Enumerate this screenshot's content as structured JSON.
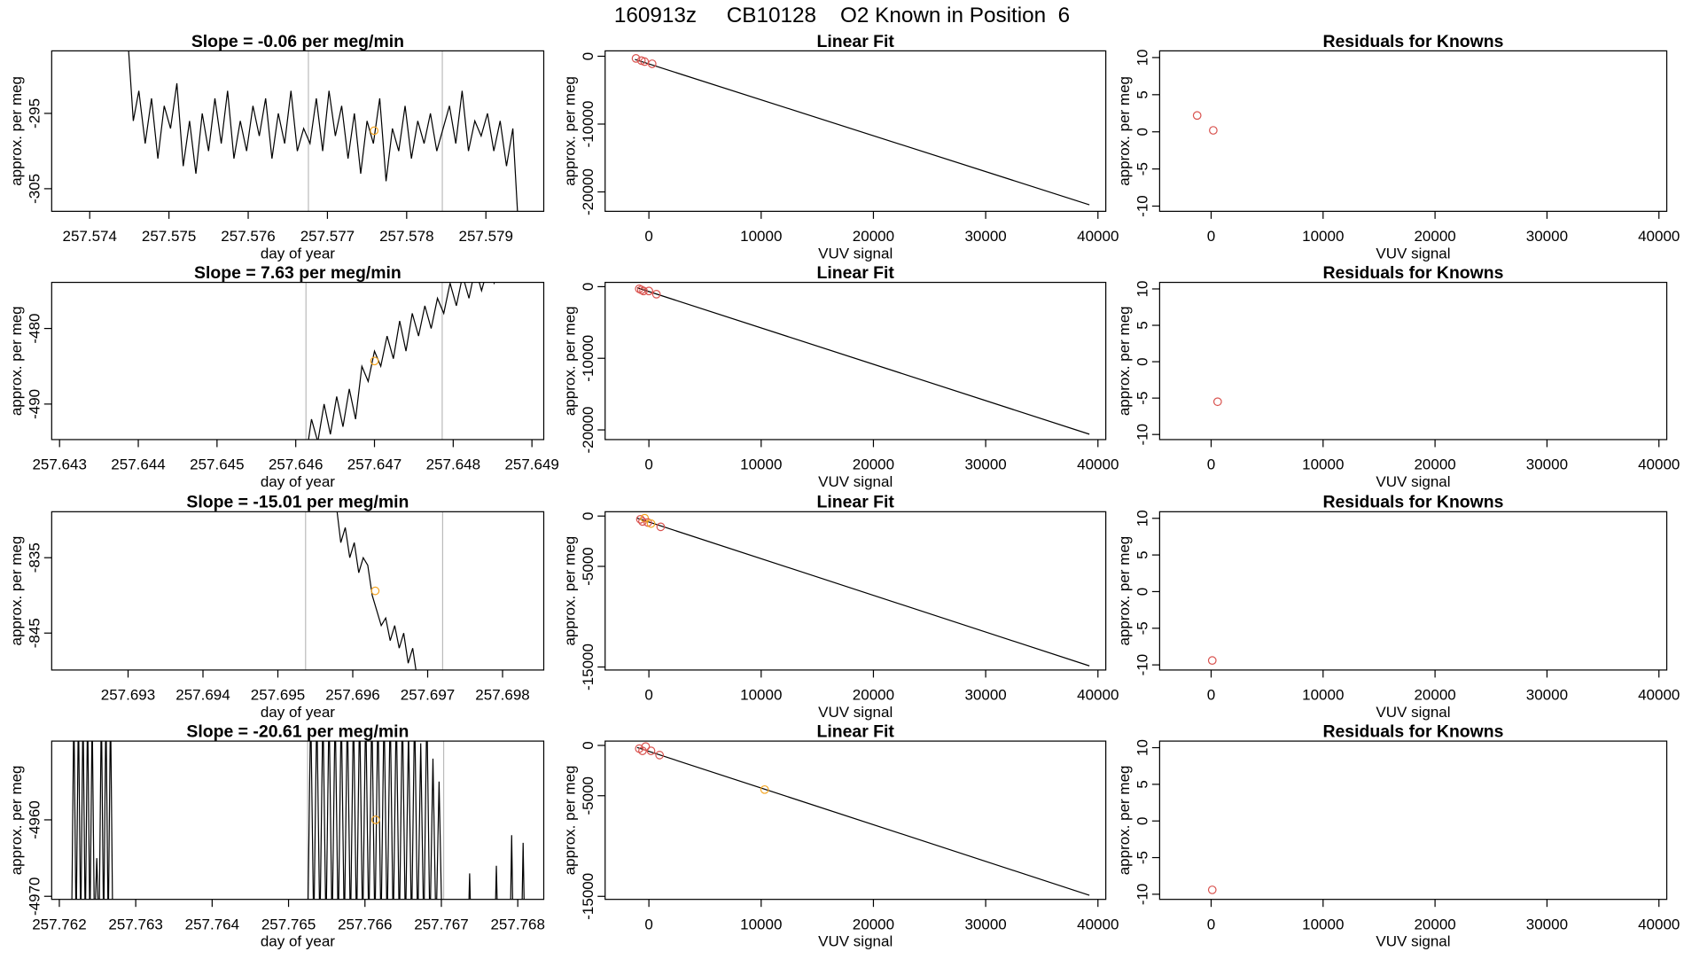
{
  "title": "160913z     CB10128    O2 Known in Position  6",
  "chart_data": [
    {
      "type": "line",
      "title": "Slope =  -0.06  per meg/min",
      "xlabel": "day of year",
      "ylabel": "approx. per meg",
      "x": [
        257.57448,
        257.57455,
        257.57462,
        257.5747,
        257.57478,
        257.57486,
        257.57494,
        257.57502,
        257.5751,
        257.57518,
        257.57526,
        257.57534,
        257.57542,
        257.5755,
        257.57558,
        257.57566,
        257.57574,
        257.57582,
        257.5759,
        257.57598,
        257.57606,
        257.57614,
        257.57622,
        257.5763,
        257.57638,
        257.57646,
        257.57654,
        257.57662,
        257.5767,
        257.57678,
        257.57686,
        257.57694,
        257.57702,
        257.5771,
        257.57718,
        257.57726,
        257.57734,
        257.57742,
        257.5775,
        257.57758,
        257.57766,
        257.57774,
        257.57782,
        257.5779,
        257.57798,
        257.57806,
        257.57814,
        257.57822,
        257.5783,
        257.57838,
        257.57846,
        257.57854,
        257.57862,
        257.5787,
        257.57878,
        257.57886,
        257.57894,
        257.57902,
        257.5791,
        257.57918,
        257.57926,
        257.57934,
        257.57942
      ],
      "values": [
        -285,
        -296,
        -292,
        -299,
        -293,
        -301,
        -294,
        -297,
        -291,
        -302,
        -296,
        -303,
        -295,
        -300,
        -293,
        -299,
        -292,
        -301,
        -296,
        -300,
        -294,
        -298,
        -293,
        -301,
        -295,
        -299,
        -292,
        -300,
        -297,
        -299,
        -293,
        -300,
        -292,
        -298,
        -294,
        -301,
        -295,
        -303,
        -296,
        -299,
        -293,
        -304,
        -297,
        -300,
        -294,
        -301,
        -296,
        -299,
        -295,
        -300,
        -297,
        -294,
        -299,
        -292,
        -300,
        -296,
        -298,
        -295,
        -300,
        -296,
        -302,
        -297,
        -312
      ],
      "color": "#000000",
      "xlim": [
        257.57352,
        257.57973
      ],
      "ylim": [
        -308.0,
        -286.7
      ],
      "xticks": [
        257.574,
        257.575,
        257.576,
        257.577,
        257.578,
        257.579
      ],
      "yticks": [
        -295,
        -305
      ],
      "vlines": [
        257.57676,
        257.57845
      ],
      "vline_color": "#bbbbbb",
      "highlight_x": 257.57759,
      "highlight_y": -297.3,
      "highlight_color": "#f5a623"
    },
    {
      "type": "scatter",
      "title": "Linear Fit",
      "xlabel": "VUV signal",
      "ylabel": "approx. per meg",
      "x": [
        -1150,
        -670,
        -380,
        290
      ],
      "values": [
        -320,
        -640,
        -790,
        -1110
      ],
      "colors": [
        "#d9534f",
        "#d9534f",
        "#d9534f",
        "#d9534f"
      ],
      "fit_x": [
        -1240,
        39240
      ],
      "fit_y": [
        -476,
        -21900
      ],
      "fit_color": "#000000",
      "xlim": [
        -3900,
        40700
      ],
      "ylim": [
        -22860,
        794
      ],
      "xticks": [
        0,
        10000,
        20000,
        30000,
        40000
      ],
      "yticks": [
        0,
        -10000,
        -20000
      ]
    },
    {
      "type": "scatter",
      "title": "Residuals for Knowns",
      "xlabel": "VUV signal",
      "ylabel": "approx. per meg",
      "x": [
        -1250,
        190
      ],
      "values": [
        2.2,
        0.2
      ],
      "colors": [
        "#d9534f",
        "#d9534f"
      ],
      "xlim": [
        -4600,
        40700
      ],
      "ylim": [
        -10.7,
        10.9
      ],
      "xticks": [
        0,
        10000,
        20000,
        30000,
        40000
      ],
      "yticks": [
        -10,
        -5,
        0,
        5,
        10
      ]
    },
    {
      "type": "line",
      "title": "Slope =  7.63  per meg/min",
      "xlabel": "day of year",
      "ylabel": "approx. per meg",
      "x": [
        257.64613,
        257.6462,
        257.64628,
        257.64636,
        257.64644,
        257.64652,
        257.6466,
        257.64668,
        257.64676,
        257.64684,
        257.64692,
        257.647,
        257.64708,
        257.64716,
        257.64724,
        257.64732,
        257.6474,
        257.64748,
        257.64756,
        257.64764,
        257.64772,
        257.6478,
        257.64788,
        257.64796,
        257.64804,
        257.64812,
        257.6482,
        257.64828,
        257.64836,
        257.64844,
        257.64852,
        257.6486,
        257.64868
      ],
      "values": [
        -497,
        -492,
        -495,
        -490,
        -494,
        -489,
        -493,
        -488,
        -492,
        -485,
        -487,
        -483,
        -485,
        -481,
        -484,
        -479,
        -483,
        -478,
        -481,
        -477,
        -480,
        -476,
        -478,
        -474,
        -477,
        -473,
        -476,
        -472,
        -475,
        -472,
        -474,
        -471,
        -473
      ],
      "color": "#000000",
      "xlim": [
        257.6429,
        257.64915
      ],
      "ylim": [
        -494.7,
        -473.9
      ],
      "xticks": [
        257.643,
        257.644,
        257.645,
        257.646,
        257.647,
        257.648,
        257.649
      ],
      "yticks": [
        -480,
        -490
      ],
      "vlines": [
        257.64613,
        257.64786
      ],
      "vline_color": "#bbbbbb",
      "highlight_x": 257.647,
      "highlight_y": -484.3,
      "highlight_color": "#f5a623"
    },
    {
      "type": "scatter",
      "title": "Linear Fit",
      "xlabel": "VUV signal",
      "ylabel": "approx. per meg",
      "x": [
        -860,
        -670,
        -480,
        0,
        670
      ],
      "values": [
        -300,
        -450,
        -600,
        -600,
        -1050
      ],
      "colors": [
        "#d9534f",
        "#d9534f",
        "#d9534f",
        "#d9534f",
        "#d9534f"
      ],
      "fit_x": [
        -1050,
        39240
      ],
      "fit_y": [
        -150,
        -20600
      ],
      "fit_color": "#000000",
      "xlim": [
        -3900,
        40700
      ],
      "ylim": [
        -21350,
        600
      ],
      "xticks": [
        0,
        10000,
        20000,
        30000,
        40000
      ],
      "yticks": [
        0,
        -10000,
        -20000
      ]
    },
    {
      "type": "scatter",
      "title": "Residuals for Knowns",
      "xlabel": "VUV signal",
      "ylabel": "approx. per meg",
      "x": [
        580
      ],
      "values": [
        -5.5
      ],
      "colors": [
        "#d9534f"
      ],
      "xlim": [
        -4600,
        40700
      ],
      "ylim": [
        -10.7,
        10.9
      ],
      "xticks": [
        0,
        10000,
        20000,
        30000,
        40000
      ],
      "yticks": [
        -10,
        -5,
        0,
        5,
        10
      ]
    },
    {
      "type": "line",
      "title": "Slope =  -15.01  per meg/min",
      "xlabel": "day of year",
      "ylabel": "approx. per meg",
      "x": [
        257.69578,
        257.69584,
        257.6959,
        257.69596,
        257.69602,
        257.69608,
        257.69614,
        257.6962,
        257.69626,
        257.69632,
        257.69638,
        257.69644,
        257.6965,
        257.69656,
        257.69662,
        257.69668,
        257.69674,
        257.6968,
        257.69686
      ],
      "values": [
        -828,
        -833,
        -831,
        -835,
        -833,
        -837,
        -835,
        -836,
        -840,
        -842,
        -844,
        -843,
        -846,
        -844,
        -847,
        -845,
        -849,
        -847,
        -851
      ],
      "color": "#000000",
      "xlim": [
        257.69198,
        257.69855
      ],
      "ylim": [
        -849.9,
        -828.9
      ],
      "xticks": [
        257.693,
        257.694,
        257.695,
        257.696,
        257.697,
        257.698
      ],
      "yticks": [
        -835,
        -845
      ],
      "vlines": [
        257.69537,
        257.6972
      ],
      "vline_color": "#bbbbbb",
      "highlight_x": 257.6963,
      "highlight_y": -839.4,
      "highlight_color": "#f5a623"
    },
    {
      "type": "scatter",
      "title": "Linear Fit",
      "xlabel": "VUV signal",
      "ylabel": "approx. per meg",
      "x": [
        -760,
        -570,
        -380,
        -100,
        190,
        1050
      ],
      "values": [
        -320,
        -540,
        -210,
        -640,
        -750,
        -1070
      ],
      "colors": [
        "#d9534f",
        "#d9534f",
        "#f5a623",
        "#d9534f",
        "#f5a623",
        "#d9534f"
      ],
      "fit_x": [
        -1050,
        39240
      ],
      "fit_y": [
        -210,
        -14890
      ],
      "fit_color": "#000000",
      "xlim": [
        -3900,
        40700
      ],
      "ylim": [
        -15300,
        430
      ],
      "xticks": [
        0,
        10000,
        20000,
        30000,
        40000
      ],
      "yticks": [
        0,
        -5000,
        -15000
      ]
    },
    {
      "type": "scatter",
      "title": "Residuals for Knowns",
      "xlabel": "VUV signal",
      "ylabel": "approx. per meg",
      "x": [
        100
      ],
      "values": [
        -9.4
      ],
      "colors": [
        "#d9534f"
      ],
      "xlim": [
        -4600,
        40700
      ],
      "ylim": [
        -10.7,
        10.9
      ],
      "xticks": [
        0,
        10000,
        20000,
        30000,
        40000
      ],
      "yticks": [
        -10,
        -5,
        0,
        5,
        10
      ]
    },
    {
      "type": "line",
      "title": "Slope =  -20.61  per meg/min",
      "xlabel": "day of year",
      "ylabel": "approx. per meg",
      "x": [
        257.76216,
        257.76219,
        257.76222,
        257.76225,
        257.76228,
        257.76231,
        257.76234,
        257.76237,
        257.7624,
        257.76243,
        257.76246,
        257.76249,
        257.76252,
        257.76255,
        257.76258,
        257.76261,
        257.76264,
        257.76267,
        257.7627,
        257.764,
        257.76525,
        257.76529,
        257.76533,
        257.76537,
        257.76541,
        257.76545,
        257.76549,
        257.76553,
        257.76557,
        257.76561,
        257.76565,
        257.76569,
        257.76573,
        257.76577,
        257.76581,
        257.76585,
        257.76589,
        257.76593,
        257.76597,
        257.76601,
        257.76605,
        257.76609,
        257.76613,
        257.76617,
        257.76621,
        257.76625,
        257.76629,
        257.76633,
        257.76637,
        257.76641,
        257.76645,
        257.76649,
        257.76653,
        257.76657,
        257.76661,
        257.76665,
        257.76669,
        257.76673,
        257.76677,
        257.76681,
        257.76685,
        257.76689,
        257.76693,
        257.76697,
        257.76701,
        257.7672,
        257.76735,
        257.76737,
        257.76739,
        257.7676,
        257.7677,
        257.76772,
        257.76774,
        257.7678,
        257.7679,
        257.76792,
        257.76794,
        257.768,
        257.76805,
        257.76807,
        257.76809
      ],
      "values": [
        -4975,
        -4945,
        -4975,
        -4945,
        -4975,
        -4945,
        -4975,
        -4945,
        -4975,
        -4946,
        -4975,
        -4965,
        -4975,
        -4945,
        -4975,
        -4945,
        -4975,
        -4945,
        -4975,
        null,
        -4975,
        -4945,
        -4975,
        -4945,
        -4975,
        -4945,
        -4975,
        -4945,
        -4975,
        -4945,
        -4975,
        -4945,
        -4975,
        -4945,
        -4975,
        -4945,
        -4975,
        -4945,
        -4975,
        -4945,
        -4975,
        -4945,
        -4975,
        -4945,
        -4975,
        -4945,
        -4975,
        -4945,
        -4975,
        -4945,
        -4975,
        -4945,
        -4975,
        -4948,
        -4975,
        -4945,
        -4975,
        -4950,
        -4975,
        -4945,
        -4975,
        -4952,
        -4975,
        -4955,
        -4975,
        null,
        -4975,
        -4967,
        -4975,
        null,
        -4975,
        -4966,
        -4975,
        null,
        -4975,
        -4962,
        -4975,
        null,
        -4975,
        -4963,
        -4975
      ],
      "color": "#000000",
      "xlim": [
        257.7619,
        257.76834
      ],
      "ylim": [
        -4970.4,
        -4949.7
      ],
      "xticks": [
        257.762,
        257.763,
        257.764,
        257.765,
        257.766,
        257.767,
        257.768
      ],
      "yticks": [
        -4960,
        -4970
      ],
      "vlines": [
        257.76525,
        257.76703
      ],
      "vline_color": "#bbbbbb",
      "highlight_x": 257.76614,
      "highlight_y": -4960,
      "highlight_color": "#f5a623"
    },
    {
      "type": "scatter",
      "title": "Linear Fit",
      "xlabel": "VUV signal",
      "ylabel": "approx. per meg",
      "x": [
        -860,
        -570,
        -290,
        190,
        950,
        10310
      ],
      "values": [
        -320,
        -540,
        -110,
        -540,
        -960,
        -4390
      ],
      "colors": [
        "#d9534f",
        "#d9534f",
        "#d9534f",
        "#d9534f",
        "#d9534f",
        "#f5a623"
      ],
      "fit_x": [
        -1050,
        39240
      ],
      "fit_y": [
        -210,
        -14890
      ],
      "fit_color": "#000000",
      "xlim": [
        -3900,
        40700
      ],
      "ylim": [
        -15300,
        430
      ],
      "xticks": [
        0,
        10000,
        20000,
        30000,
        40000
      ],
      "yticks": [
        0,
        -5000,
        -15000
      ]
    },
    {
      "type": "scatter",
      "title": "Residuals for Knowns",
      "xlabel": "VUV signal",
      "ylabel": "approx. per meg",
      "x": [
        100
      ],
      "values": [
        -9.4
      ],
      "colors": [
        "#d9534f"
      ],
      "xlim": [
        -4600,
        40700
      ],
      "ylim": [
        -10.7,
        10.9
      ],
      "xticks": [
        0,
        10000,
        20000,
        30000,
        40000
      ],
      "yticks": [
        -10,
        -5,
        0,
        5,
        10
      ]
    }
  ]
}
